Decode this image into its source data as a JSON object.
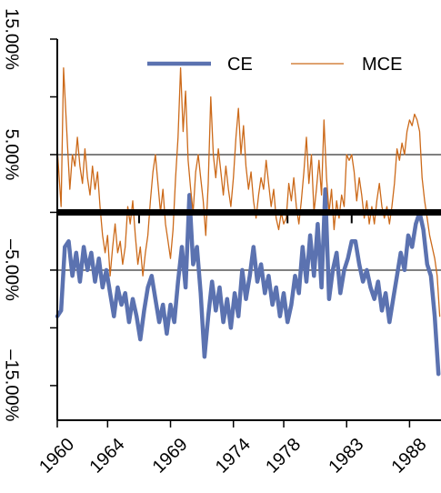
{
  "chart_data": {
    "type": "line",
    "y_ticks": [
      {
        "value": 15,
        "label": "15.00%"
      },
      {
        "value": 5,
        "label": "5.00%"
      },
      {
        "value": -5,
        "label": "–5.00%"
      },
      {
        "value": -15,
        "label": "–15.00%"
      }
    ],
    "x_ticks": [
      {
        "value": 1960,
        "label": "1960"
      },
      {
        "value": 1964,
        "label": "1964"
      },
      {
        "value": 1969,
        "label": "1969"
      },
      {
        "value": 1974,
        "label": "1974"
      },
      {
        "value": 1978,
        "label": "1978"
      },
      {
        "value": 1983,
        "label": "1983"
      },
      {
        "value": 1988,
        "label": "1988"
      }
    ],
    "xlim": [
      1960,
      1990.5
    ],
    "ylim": [
      -18,
      15
    ],
    "zero_line": 0,
    "grid": "horizontal",
    "legend_position": "top",
    "series": [
      {
        "name": "CE",
        "color": "#5b72b0",
        "points": [
          [
            1960.0,
            -9.0
          ],
          [
            1960.3,
            -8.5
          ],
          [
            1960.6,
            -3.0
          ],
          [
            1960.9,
            -2.5
          ],
          [
            1961.2,
            -5.5
          ],
          [
            1961.5,
            -3.5
          ],
          [
            1961.8,
            -6.0
          ],
          [
            1962.1,
            -3.0
          ],
          [
            1962.4,
            -5.0
          ],
          [
            1962.7,
            -3.5
          ],
          [
            1963.0,
            -6.0
          ],
          [
            1963.3,
            -4.0
          ],
          [
            1963.6,
            -6.5
          ],
          [
            1963.9,
            -5.0
          ],
          [
            1964.2,
            -7.0
          ],
          [
            1964.5,
            -9.0
          ],
          [
            1964.8,
            -6.5
          ],
          [
            1965.1,
            -8.0
          ],
          [
            1965.4,
            -7.0
          ],
          [
            1965.7,
            -9.5
          ],
          [
            1966.0,
            -7.5
          ],
          [
            1966.3,
            -9.0
          ],
          [
            1966.6,
            -11.0
          ],
          [
            1966.9,
            -8.5
          ],
          [
            1967.2,
            -6.5
          ],
          [
            1967.5,
            -5.5
          ],
          [
            1967.8,
            -7.5
          ],
          [
            1968.1,
            -9.5
          ],
          [
            1968.4,
            -8.0
          ],
          [
            1968.7,
            -10.5
          ],
          [
            1969.0,
            -8.0
          ],
          [
            1969.3,
            -9.5
          ],
          [
            1969.6,
            -6.0
          ],
          [
            1969.9,
            -3.0
          ],
          [
            1970.2,
            -6.5
          ],
          [
            1970.5,
            1.5
          ],
          [
            1970.8,
            -4.5
          ],
          [
            1971.1,
            -3.0
          ],
          [
            1971.4,
            -7.0
          ],
          [
            1971.7,
            -12.5
          ],
          [
            1972.0,
            -9.0
          ],
          [
            1972.3,
            -6.0
          ],
          [
            1972.6,
            -8.5
          ],
          [
            1972.9,
            -6.5
          ],
          [
            1973.2,
            -9.5
          ],
          [
            1973.5,
            -7.5
          ],
          [
            1973.8,
            -10.0
          ],
          [
            1974.1,
            -7.0
          ],
          [
            1974.4,
            -9.0
          ],
          [
            1974.7,
            -5.0
          ],
          [
            1975.0,
            -7.5
          ],
          [
            1975.3,
            -5.5
          ],
          [
            1975.6,
            -3.0
          ],
          [
            1975.9,
            -6.0
          ],
          [
            1976.2,
            -4.5
          ],
          [
            1976.5,
            -7.0
          ],
          [
            1976.8,
            -5.5
          ],
          [
            1977.1,
            -8.0
          ],
          [
            1977.4,
            -6.5
          ],
          [
            1977.7,
            -9.0
          ],
          [
            1978.0,
            -7.0
          ],
          [
            1978.3,
            -9.5
          ],
          [
            1978.6,
            -8.0
          ],
          [
            1978.9,
            -5.5
          ],
          [
            1979.2,
            -7.0
          ],
          [
            1979.5,
            -3.0
          ],
          [
            1979.8,
            -6.0
          ],
          [
            1980.1,
            -2.0
          ],
          [
            1980.4,
            -5.5
          ],
          [
            1980.7,
            -1.0
          ],
          [
            1981.0,
            -6.5
          ],
          [
            1981.3,
            2.0
          ],
          [
            1981.6,
            -7.5
          ],
          [
            1981.9,
            -5.0
          ],
          [
            1982.2,
            -3.5
          ],
          [
            1982.5,
            -7.0
          ],
          [
            1982.8,
            -5.0
          ],
          [
            1983.1,
            -4.0
          ],
          [
            1983.4,
            -2.5
          ],
          [
            1983.7,
            -2.5
          ],
          [
            1984.0,
            -4.5
          ],
          [
            1984.3,
            -6.0
          ],
          [
            1984.6,
            -5.0
          ],
          [
            1984.9,
            -6.5
          ],
          [
            1985.2,
            -7.5
          ],
          [
            1985.5,
            -6.0
          ],
          [
            1985.8,
            -8.5
          ],
          [
            1986.1,
            -7.0
          ],
          [
            1986.4,
            -9.5
          ],
          [
            1986.7,
            -7.5
          ],
          [
            1987.0,
            -5.5
          ],
          [
            1987.3,
            -3.5
          ],
          [
            1987.6,
            -5.0
          ],
          [
            1987.9,
            -2.0
          ],
          [
            1988.2,
            -3.0
          ],
          [
            1988.5,
            -1.0
          ],
          [
            1988.8,
            0.0
          ],
          [
            1989.1,
            -1.5
          ],
          [
            1989.4,
            -4.5
          ],
          [
            1989.7,
            -5.5
          ],
          [
            1990.0,
            -9.0
          ],
          [
            1990.3,
            -14.0
          ]
        ]
      },
      {
        "name": "MCE",
        "color": "#cc6a1a",
        "points": [
          [
            1960.0,
            5.5
          ],
          [
            1960.3,
            0.5
          ],
          [
            1960.5,
            12.5
          ],
          [
            1960.8,
            6.0
          ],
          [
            1961.0,
            2.0
          ],
          [
            1961.2,
            5.0
          ],
          [
            1961.4,
            4.0
          ],
          [
            1961.6,
            6.5
          ],
          [
            1961.8,
            4.0
          ],
          [
            1962.0,
            2.5
          ],
          [
            1962.2,
            5.5
          ],
          [
            1962.4,
            3.0
          ],
          [
            1962.6,
            1.5
          ],
          [
            1962.8,
            4.0
          ],
          [
            1963.0,
            2.0
          ],
          [
            1963.2,
            3.5
          ],
          [
            1963.4,
            0.5
          ],
          [
            1963.6,
            -2.0
          ],
          [
            1963.8,
            -3.5
          ],
          [
            1964.0,
            -2.0
          ],
          [
            1964.2,
            -5.5
          ],
          [
            1964.4,
            -3.0
          ],
          [
            1964.6,
            -1.0
          ],
          [
            1964.8,
            -3.5
          ],
          [
            1965.0,
            -2.5
          ],
          [
            1965.2,
            -4.5
          ],
          [
            1965.4,
            -3.0
          ],
          [
            1965.6,
            0.5
          ],
          [
            1965.8,
            -1.0
          ],
          [
            1966.0,
            1.0
          ],
          [
            1966.2,
            -2.0
          ],
          [
            1966.4,
            -4.5
          ],
          [
            1966.6,
            -3.0
          ],
          [
            1966.8,
            -5.5
          ],
          [
            1967.0,
            -3.5
          ],
          [
            1967.2,
            -2.0
          ],
          [
            1967.4,
            1.0
          ],
          [
            1967.6,
            3.5
          ],
          [
            1967.8,
            5.0
          ],
          [
            1968.0,
            2.5
          ],
          [
            1968.2,
            0.0
          ],
          [
            1968.4,
            2.0
          ],
          [
            1968.6,
            -1.0
          ],
          [
            1968.8,
            -2.5
          ],
          [
            1969.0,
            -4.0
          ],
          [
            1969.2,
            -1.5
          ],
          [
            1969.4,
            3.0
          ],
          [
            1969.6,
            6.5
          ],
          [
            1969.8,
            12.5
          ],
          [
            1970.0,
            7.0
          ],
          [
            1970.2,
            10.5
          ],
          [
            1970.4,
            4.5
          ],
          [
            1970.6,
            2.0
          ],
          [
            1970.8,
            0.0
          ],
          [
            1971.0,
            3.5
          ],
          [
            1971.2,
            5.0
          ],
          [
            1971.4,
            3.0
          ],
          [
            1971.6,
            1.0
          ],
          [
            1971.8,
            -2.0
          ],
          [
            1972.0,
            2.5
          ],
          [
            1972.2,
            10.0
          ],
          [
            1972.4,
            5.0
          ],
          [
            1972.6,
            3.0
          ],
          [
            1972.8,
            5.5
          ],
          [
            1973.0,
            3.5
          ],
          [
            1973.2,
            1.5
          ],
          [
            1973.4,
            4.0
          ],
          [
            1973.6,
            2.0
          ],
          [
            1973.8,
            0.5
          ],
          [
            1974.0,
            3.0
          ],
          [
            1974.2,
            6.5
          ],
          [
            1974.4,
            9.0
          ],
          [
            1974.6,
            5.0
          ],
          [
            1974.8,
            7.5
          ],
          [
            1975.0,
            4.0
          ],
          [
            1975.2,
            2.0
          ],
          [
            1975.4,
            3.5
          ],
          [
            1975.6,
            1.0
          ],
          [
            1975.8,
            -0.5
          ],
          [
            1976.0,
            1.5
          ],
          [
            1976.2,
            3.0
          ],
          [
            1976.4,
            2.0
          ],
          [
            1976.6,
            4.5
          ],
          [
            1976.8,
            2.5
          ],
          [
            1977.0,
            0.5
          ],
          [
            1977.2,
            2.0
          ],
          [
            1977.4,
            -0.5
          ],
          [
            1977.6,
            -1.5
          ],
          [
            1977.8,
            0.0
          ],
          [
            1978.0,
            -1.0
          ],
          [
            1978.2,
            -0.5
          ],
          [
            1978.4,
            2.5
          ],
          [
            1978.6,
            1.0
          ],
          [
            1978.8,
            3.0
          ],
          [
            1979.0,
            0.5
          ],
          [
            1979.2,
            -1.0
          ],
          [
            1979.4,
            1.0
          ],
          [
            1979.6,
            3.5
          ],
          [
            1979.8,
            6.5
          ],
          [
            1980.0,
            2.5
          ],
          [
            1980.2,
            5.0
          ],
          [
            1980.4,
            0.0
          ],
          [
            1980.6,
            2.0
          ],
          [
            1980.8,
            4.5
          ],
          [
            1981.0,
            1.5
          ],
          [
            1981.2,
            8.0
          ],
          [
            1981.4,
            3.0
          ],
          [
            1981.6,
            0.0
          ],
          [
            1981.8,
            2.0
          ],
          [
            1982.0,
            -1.5
          ],
          [
            1982.2,
            1.0
          ],
          [
            1982.4,
            -0.5
          ],
          [
            1982.6,
            1.5
          ],
          [
            1982.8,
            0.5
          ],
          [
            1983.0,
            5.0
          ],
          [
            1983.2,
            4.5
          ],
          [
            1983.4,
            5.0
          ],
          [
            1983.6,
            3.5
          ],
          [
            1983.8,
            1.0
          ],
          [
            1984.0,
            3.0
          ],
          [
            1984.2,
            1.5
          ],
          [
            1984.4,
            -0.5
          ],
          [
            1984.6,
            1.0
          ],
          [
            1984.8,
            -1.0
          ],
          [
            1985.0,
            0.5
          ],
          [
            1985.2,
            -1.0
          ],
          [
            1985.4,
            1.0
          ],
          [
            1985.6,
            2.5
          ],
          [
            1985.8,
            0.5
          ],
          [
            1986.0,
            -0.5
          ],
          [
            1986.2,
            0.5
          ],
          [
            1986.4,
            -1.0
          ],
          [
            1986.6,
            0.5
          ],
          [
            1986.8,
            2.5
          ],
          [
            1987.0,
            5.5
          ],
          [
            1987.2,
            4.5
          ],
          [
            1987.4,
            6.0
          ],
          [
            1987.6,
            5.0
          ],
          [
            1987.8,
            7.0
          ],
          [
            1988.0,
            8.0
          ],
          [
            1988.2,
            7.5
          ],
          [
            1988.4,
            8.5
          ],
          [
            1988.6,
            8.0
          ],
          [
            1988.8,
            7.0
          ],
          [
            1989.0,
            3.0
          ],
          [
            1989.2,
            1.0
          ],
          [
            1989.4,
            -0.5
          ],
          [
            1989.6,
            -2.0
          ],
          [
            1989.8,
            -3.0
          ],
          [
            1990.0,
            -4.0
          ],
          [
            1990.2,
            -5.5
          ],
          [
            1990.4,
            -9.0
          ]
        ]
      }
    ]
  }
}
